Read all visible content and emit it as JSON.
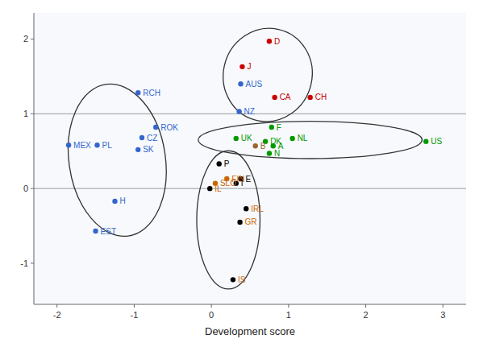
{
  "chart_data": {
    "type": "scatter",
    "xlabel": "Development score",
    "labels": [
      "D",
      "J",
      "AUS",
      "CA",
      "CH",
      "NZ",
      "RCH",
      "ROK",
      "CZ",
      "MEX",
      "PL",
      "SK",
      "F",
      "UK",
      "DK",
      "A",
      "B",
      "NL",
      "N",
      "US",
      "P",
      "FIN",
      "E",
      "SLO",
      "I",
      "IL",
      "IRL",
      "GR",
      "IS",
      "H",
      "EST"
    ],
    "x": [
      0.75,
      0.4,
      0.38,
      0.82,
      1.28,
      0.36,
      -0.95,
      -0.72,
      -0.9,
      -1.85,
      -1.48,
      -0.95,
      0.78,
      0.32,
      0.7,
      0.8,
      0.57,
      1.05,
      0.75,
      2.78,
      0.1,
      0.2,
      0.38,
      0.05,
      0.32,
      -0.02,
      0.45,
      0.37,
      0.28,
      -1.25,
      -1.5
    ],
    "values": [
      1.97,
      1.63,
      1.4,
      1.22,
      1.22,
      1.03,
      1.28,
      0.82,
      0.68,
      0.58,
      0.58,
      0.52,
      0.82,
      0.67,
      0.63,
      0.57,
      0.57,
      0.67,
      0.47,
      0.63,
      0.33,
      0.13,
      0.13,
      0.07,
      0.07,
      0.0,
      -0.27,
      -0.45,
      -1.22,
      -0.17,
      -0.57
    ],
    "colors": [
      "#cc0000",
      "#cc0000",
      "#3366cc",
      "#cc0000",
      "#cc0000",
      "#3366cc",
      "#3366cc",
      "#3366cc",
      "#3366cc",
      "#3366cc",
      "#3366cc",
      "#3366cc",
      "#009900",
      "#009900",
      "#009900",
      "#009900",
      "#996633",
      "#009900",
      "#009900",
      "#009900",
      "#000000",
      "#cc6600",
      "#000000",
      "#cc6600",
      "#000000",
      "#000000",
      "#000000",
      "#000000",
      "#000000",
      "#3366cc",
      "#3366cc"
    ],
    "label_colors": [
      "#cc0000",
      "#cc0000",
      "#3366cc",
      "#cc0000",
      "#cc0000",
      "#3366cc",
      "#3366cc",
      "#3366cc",
      "#3366cc",
      "#3366cc",
      "#3366cc",
      "#3366cc",
      "#009900",
      "#009900",
      "#009900",
      "#009900",
      "#996633",
      "#009900",
      "#009900",
      "#009900",
      "#000000",
      "#cc6600",
      "#000000",
      "#cc6600",
      "#000000",
      "#cc6600",
      "#cc6600",
      "#cc6600",
      "#cc6600",
      "#3366cc",
      "#3366cc"
    ],
    "ellipses": [
      {
        "cx": 0.73,
        "cy": 1.52,
        "width": 1.15,
        "height": 1.25,
        "angle": -12
      },
      {
        "cx": -1.22,
        "cy": 0.38,
        "width": 1.25,
        "height": 2.05,
        "angle": 8
      },
      {
        "cx": 0.22,
        "cy": -0.42,
        "width": 0.82,
        "height": 1.85,
        "angle": 0
      },
      {
        "cx": 1.28,
        "cy": 0.65,
        "width": 2.9,
        "height": 0.5,
        "angle": 0
      }
    ],
    "hlines": [
      0.0,
      1.0
    ],
    "xlim": [
      -2.3,
      3.3
    ],
    "ylim": [
      -1.55,
      2.35
    ],
    "xticks": [
      -2,
      -1,
      0,
      1,
      2,
      3
    ],
    "yticks": [
      -1,
      0,
      1,
      2
    ],
    "grid": false
  }
}
